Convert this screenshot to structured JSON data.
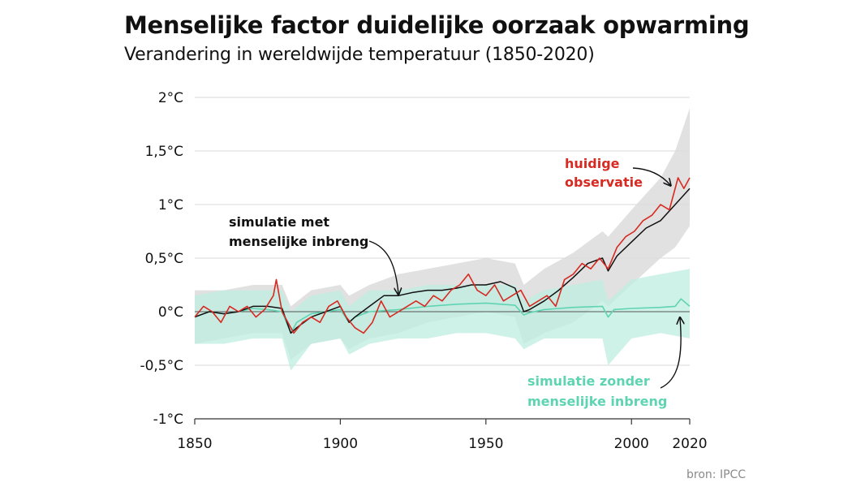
{
  "header": {
    "title": "Menselijke factor duidelijke oorzaak opwarming",
    "subtitle": "Verandering in wereldwijde temperatuur (1850-2020)",
    "source": "bron: IPCC"
  },
  "colors": {
    "observed": "#d62a22",
    "human_sim": "#111111",
    "human_band": "#dcdcdc",
    "natural_sim": "#5fd4b2",
    "natural_band": "#bfeee0",
    "grid": "#d9d9d9",
    "zero_line": "#555555"
  },
  "chart_data": {
    "type": "line",
    "title": "Verandering in wereldwijde temperatuur (1850-2020)",
    "xlabel": "",
    "ylabel": "",
    "xlim": [
      1850,
      2020
    ],
    "ylim": [
      -1,
      2
    ],
    "x_ticks": [
      1850,
      1900,
      1950,
      2000,
      2020
    ],
    "y_ticks": [
      {
        "value": 2,
        "label": "2°C"
      },
      {
        "value": 1.5,
        "label": "1,5°C"
      },
      {
        "value": 1,
        "label": "1°C"
      },
      {
        "value": 0.5,
        "label": "0,5°C"
      },
      {
        "value": 0,
        "label": "0°C"
      },
      {
        "value": -0.5,
        "label": "-0,5°C"
      },
      {
        "value": -1,
        "label": "-1°C"
      }
    ],
    "annotations": {
      "observed": [
        "huidige",
        "observatie"
      ],
      "human": [
        "simulatie met",
        "menselijke inbreng"
      ],
      "natural": [
        "simulatie zonder",
        "menselijke inbreng"
      ]
    },
    "series": [
      {
        "name": "huidige observatie",
        "x": [
          1850,
          1853,
          1856,
          1859,
          1862,
          1865,
          1868,
          1871,
          1874,
          1877,
          1878,
          1880,
          1883,
          1884,
          1887,
          1890,
          1893,
          1896,
          1899,
          1902,
          1905,
          1908,
          1911,
          1914,
          1917,
          1920,
          1923,
          1926,
          1929,
          1932,
          1935,
          1938,
          1941,
          1944,
          1947,
          1950,
          1953,
          1956,
          1959,
          1962,
          1965,
          1968,
          1971,
          1974,
          1977,
          1980,
          1983,
          1986,
          1989,
          1992,
          1995,
          1998,
          2001,
          2004,
          2007,
          2010,
          2013,
          2016,
          2018,
          2020
        ],
        "values": [
          -0.05,
          0.05,
          0.0,
          -0.1,
          0.05,
          0.0,
          0.05,
          -0.05,
          0.02,
          0.15,
          0.3,
          0.0,
          -0.15,
          -0.2,
          -0.1,
          -0.05,
          -0.1,
          0.05,
          0.1,
          -0.05,
          -0.15,
          -0.2,
          -0.1,
          0.1,
          -0.05,
          0.0,
          0.05,
          0.1,
          0.05,
          0.15,
          0.1,
          0.2,
          0.25,
          0.35,
          0.2,
          0.15,
          0.25,
          0.1,
          0.15,
          0.2,
          0.05,
          0.1,
          0.15,
          0.05,
          0.3,
          0.35,
          0.45,
          0.4,
          0.5,
          0.4,
          0.6,
          0.7,
          0.75,
          0.85,
          0.9,
          1.0,
          0.95,
          1.25,
          1.15,
          1.25
        ]
      },
      {
        "name": "simulatie met menselijke inbreng",
        "x": [
          1850,
          1855,
          1860,
          1865,
          1870,
          1875,
          1880,
          1883,
          1885,
          1890,
          1895,
          1900,
          1903,
          1905,
          1910,
          1915,
          1920,
          1925,
          1930,
          1935,
          1940,
          1945,
          1950,
          1955,
          1960,
          1963,
          1965,
          1970,
          1975,
          1980,
          1985,
          1990,
          1992,
          1995,
          2000,
          2005,
          2010,
          2015,
          2020
        ],
        "values": [
          -0.05,
          0.0,
          -0.02,
          0.0,
          0.05,
          0.05,
          0.03,
          -0.2,
          -0.15,
          -0.05,
          0.0,
          0.05,
          -0.1,
          -0.05,
          0.05,
          0.15,
          0.15,
          0.18,
          0.2,
          0.2,
          0.22,
          0.25,
          0.25,
          0.28,
          0.22,
          0.0,
          0.02,
          0.1,
          0.2,
          0.32,
          0.45,
          0.5,
          0.38,
          0.52,
          0.65,
          0.78,
          0.85,
          1.0,
          1.15
        ]
      },
      {
        "name": "simulatie zonder menselijke inbreng",
        "x": [
          1850,
          1855,
          1860,
          1865,
          1870,
          1875,
          1880,
          1883,
          1885,
          1890,
          1895,
          1900,
          1903,
          1905,
          1910,
          1920,
          1930,
          1940,
          1950,
          1960,
          1963,
          1965,
          1970,
          1980,
          1990,
          1992,
          1994,
          2000,
          2010,
          2015,
          2017,
          2020
        ],
        "values": [
          -0.05,
          0.0,
          -0.02,
          0.0,
          0.03,
          0.02,
          0.0,
          -0.2,
          -0.1,
          -0.02,
          0.0,
          0.02,
          -0.1,
          -0.05,
          0.0,
          0.02,
          0.05,
          0.07,
          0.08,
          0.06,
          -0.03,
          -0.01,
          0.02,
          0.04,
          0.05,
          -0.05,
          0.02,
          0.03,
          0.04,
          0.05,
          0.12,
          0.05
        ]
      }
    ],
    "bands": [
      {
        "name": "spreiding simulatie met menselijke inbreng",
        "x": [
          1850,
          1860,
          1870,
          1880,
          1883,
          1890,
          1900,
          1903,
          1910,
          1920,
          1930,
          1940,
          1950,
          1960,
          1963,
          1970,
          1980,
          1990,
          1992,
          2000,
          2010,
          2015,
          2020
        ],
        "upper": [
          0.2,
          0.2,
          0.25,
          0.25,
          0.05,
          0.2,
          0.25,
          0.15,
          0.25,
          0.35,
          0.4,
          0.45,
          0.5,
          0.45,
          0.25,
          0.4,
          0.55,
          0.75,
          0.7,
          0.95,
          1.25,
          1.5,
          1.9
        ],
        "lower": [
          -0.3,
          -0.25,
          -0.2,
          -0.2,
          -0.45,
          -0.3,
          -0.25,
          -0.35,
          -0.25,
          -0.2,
          -0.1,
          -0.05,
          0.0,
          -0.05,
          -0.3,
          -0.2,
          -0.1,
          0.1,
          0.05,
          0.25,
          0.5,
          0.6,
          0.8
        ]
      },
      {
        "name": "spreiding simulatie zonder menselijke inbreng",
        "x": [
          1850,
          1860,
          1870,
          1880,
          1883,
          1890,
          1900,
          1903,
          1910,
          1920,
          1930,
          1940,
          1950,
          1960,
          1963,
          1970,
          1980,
          1990,
          1992,
          2000,
          2010,
          2020
        ],
        "upper": [
          0.15,
          0.2,
          0.2,
          0.2,
          0.0,
          0.15,
          0.2,
          0.05,
          0.2,
          0.2,
          0.25,
          0.25,
          0.25,
          0.25,
          0.1,
          0.2,
          0.25,
          0.3,
          0.1,
          0.3,
          0.35,
          0.4
        ],
        "lower": [
          -0.3,
          -0.3,
          -0.25,
          -0.25,
          -0.55,
          -0.3,
          -0.25,
          -0.4,
          -0.3,
          -0.25,
          -0.25,
          -0.2,
          -0.2,
          -0.25,
          -0.35,
          -0.25,
          -0.25,
          -0.25,
          -0.5,
          -0.25,
          -0.2,
          -0.25
        ]
      }
    ]
  }
}
